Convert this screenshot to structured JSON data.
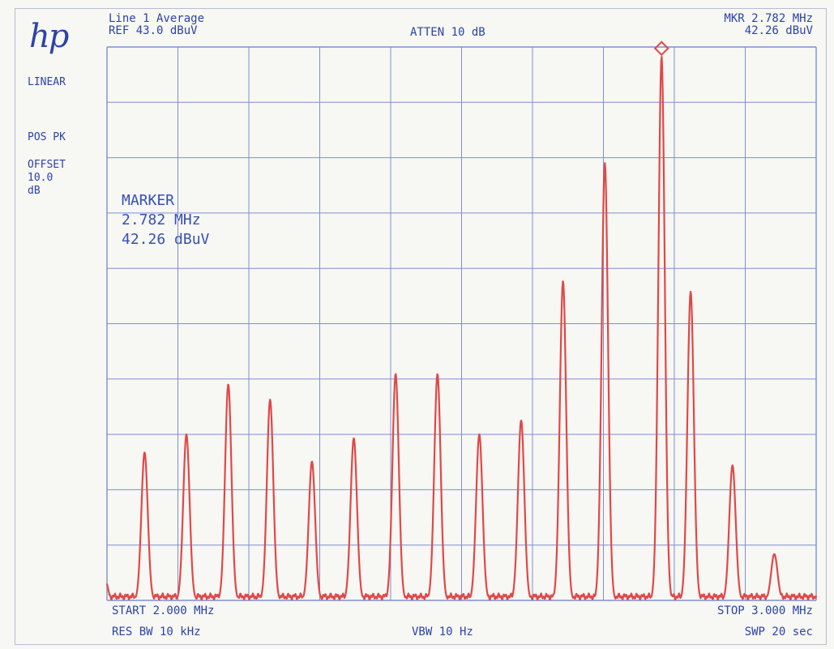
{
  "instrument": {
    "logo": "hp",
    "left_panel": {
      "scale": "LINEAR",
      "detector": "POS PK",
      "offset_label": "OFFSET",
      "offset_value": "10.0",
      "offset_unit": "dB"
    },
    "header": {
      "trace_mode": "Line 1 Average",
      "ref_level": "REF 43.0 dBuV",
      "atten": "ATTEN 10 dB",
      "mkr_freq": "MKR 2.782 MHz",
      "mkr_amp": "42.26 dBuV"
    },
    "marker_box": {
      "title": "MARKER",
      "freq": "2.782 MHz",
      "amp": "42.26 dBuV"
    },
    "footer": {
      "start": "START 2.000 MHz",
      "stop": "STOP 3.000 MHz",
      "rbw": "RES BW 10 kHz",
      "vbw": "VBW 10 Hz",
      "sweep": "SWP 20 sec"
    }
  },
  "chart_data": {
    "type": "line",
    "title": "",
    "xlabel": "",
    "ylabel": "",
    "x_unit": "MHz",
    "y_unit": "dBuV",
    "xlim": [
      2.0,
      3.0
    ],
    "ylim": [
      0.0,
      43.0
    ],
    "grid": true,
    "grid_divisions": {
      "x": 10,
      "y": 10
    },
    "series_color": "#e04848",
    "noise_floor": 0.3,
    "peaks": [
      {
        "x": 2.053,
        "y": 11.5
      },
      {
        "x": 2.112,
        "y": 12.9
      },
      {
        "x": 2.171,
        "y": 16.8
      },
      {
        "x": 2.23,
        "y": 15.6
      },
      {
        "x": 2.289,
        "y": 10.8
      },
      {
        "x": 2.348,
        "y": 12.6
      },
      {
        "x": 2.407,
        "y": 17.6
      },
      {
        "x": 2.466,
        "y": 17.6
      },
      {
        "x": 2.525,
        "y": 12.9
      },
      {
        "x": 2.584,
        "y": 14.0
      },
      {
        "x": 2.643,
        "y": 24.8
      },
      {
        "x": 2.702,
        "y": 34.0
      },
      {
        "x": 2.782,
        "y": 42.26
      },
      {
        "x": 2.823,
        "y": 24.0
      },
      {
        "x": 2.882,
        "y": 10.5
      },
      {
        "x": 2.941,
        "y": 3.6
      }
    ],
    "marker": {
      "x": 2.782,
      "y": 42.26
    }
  }
}
